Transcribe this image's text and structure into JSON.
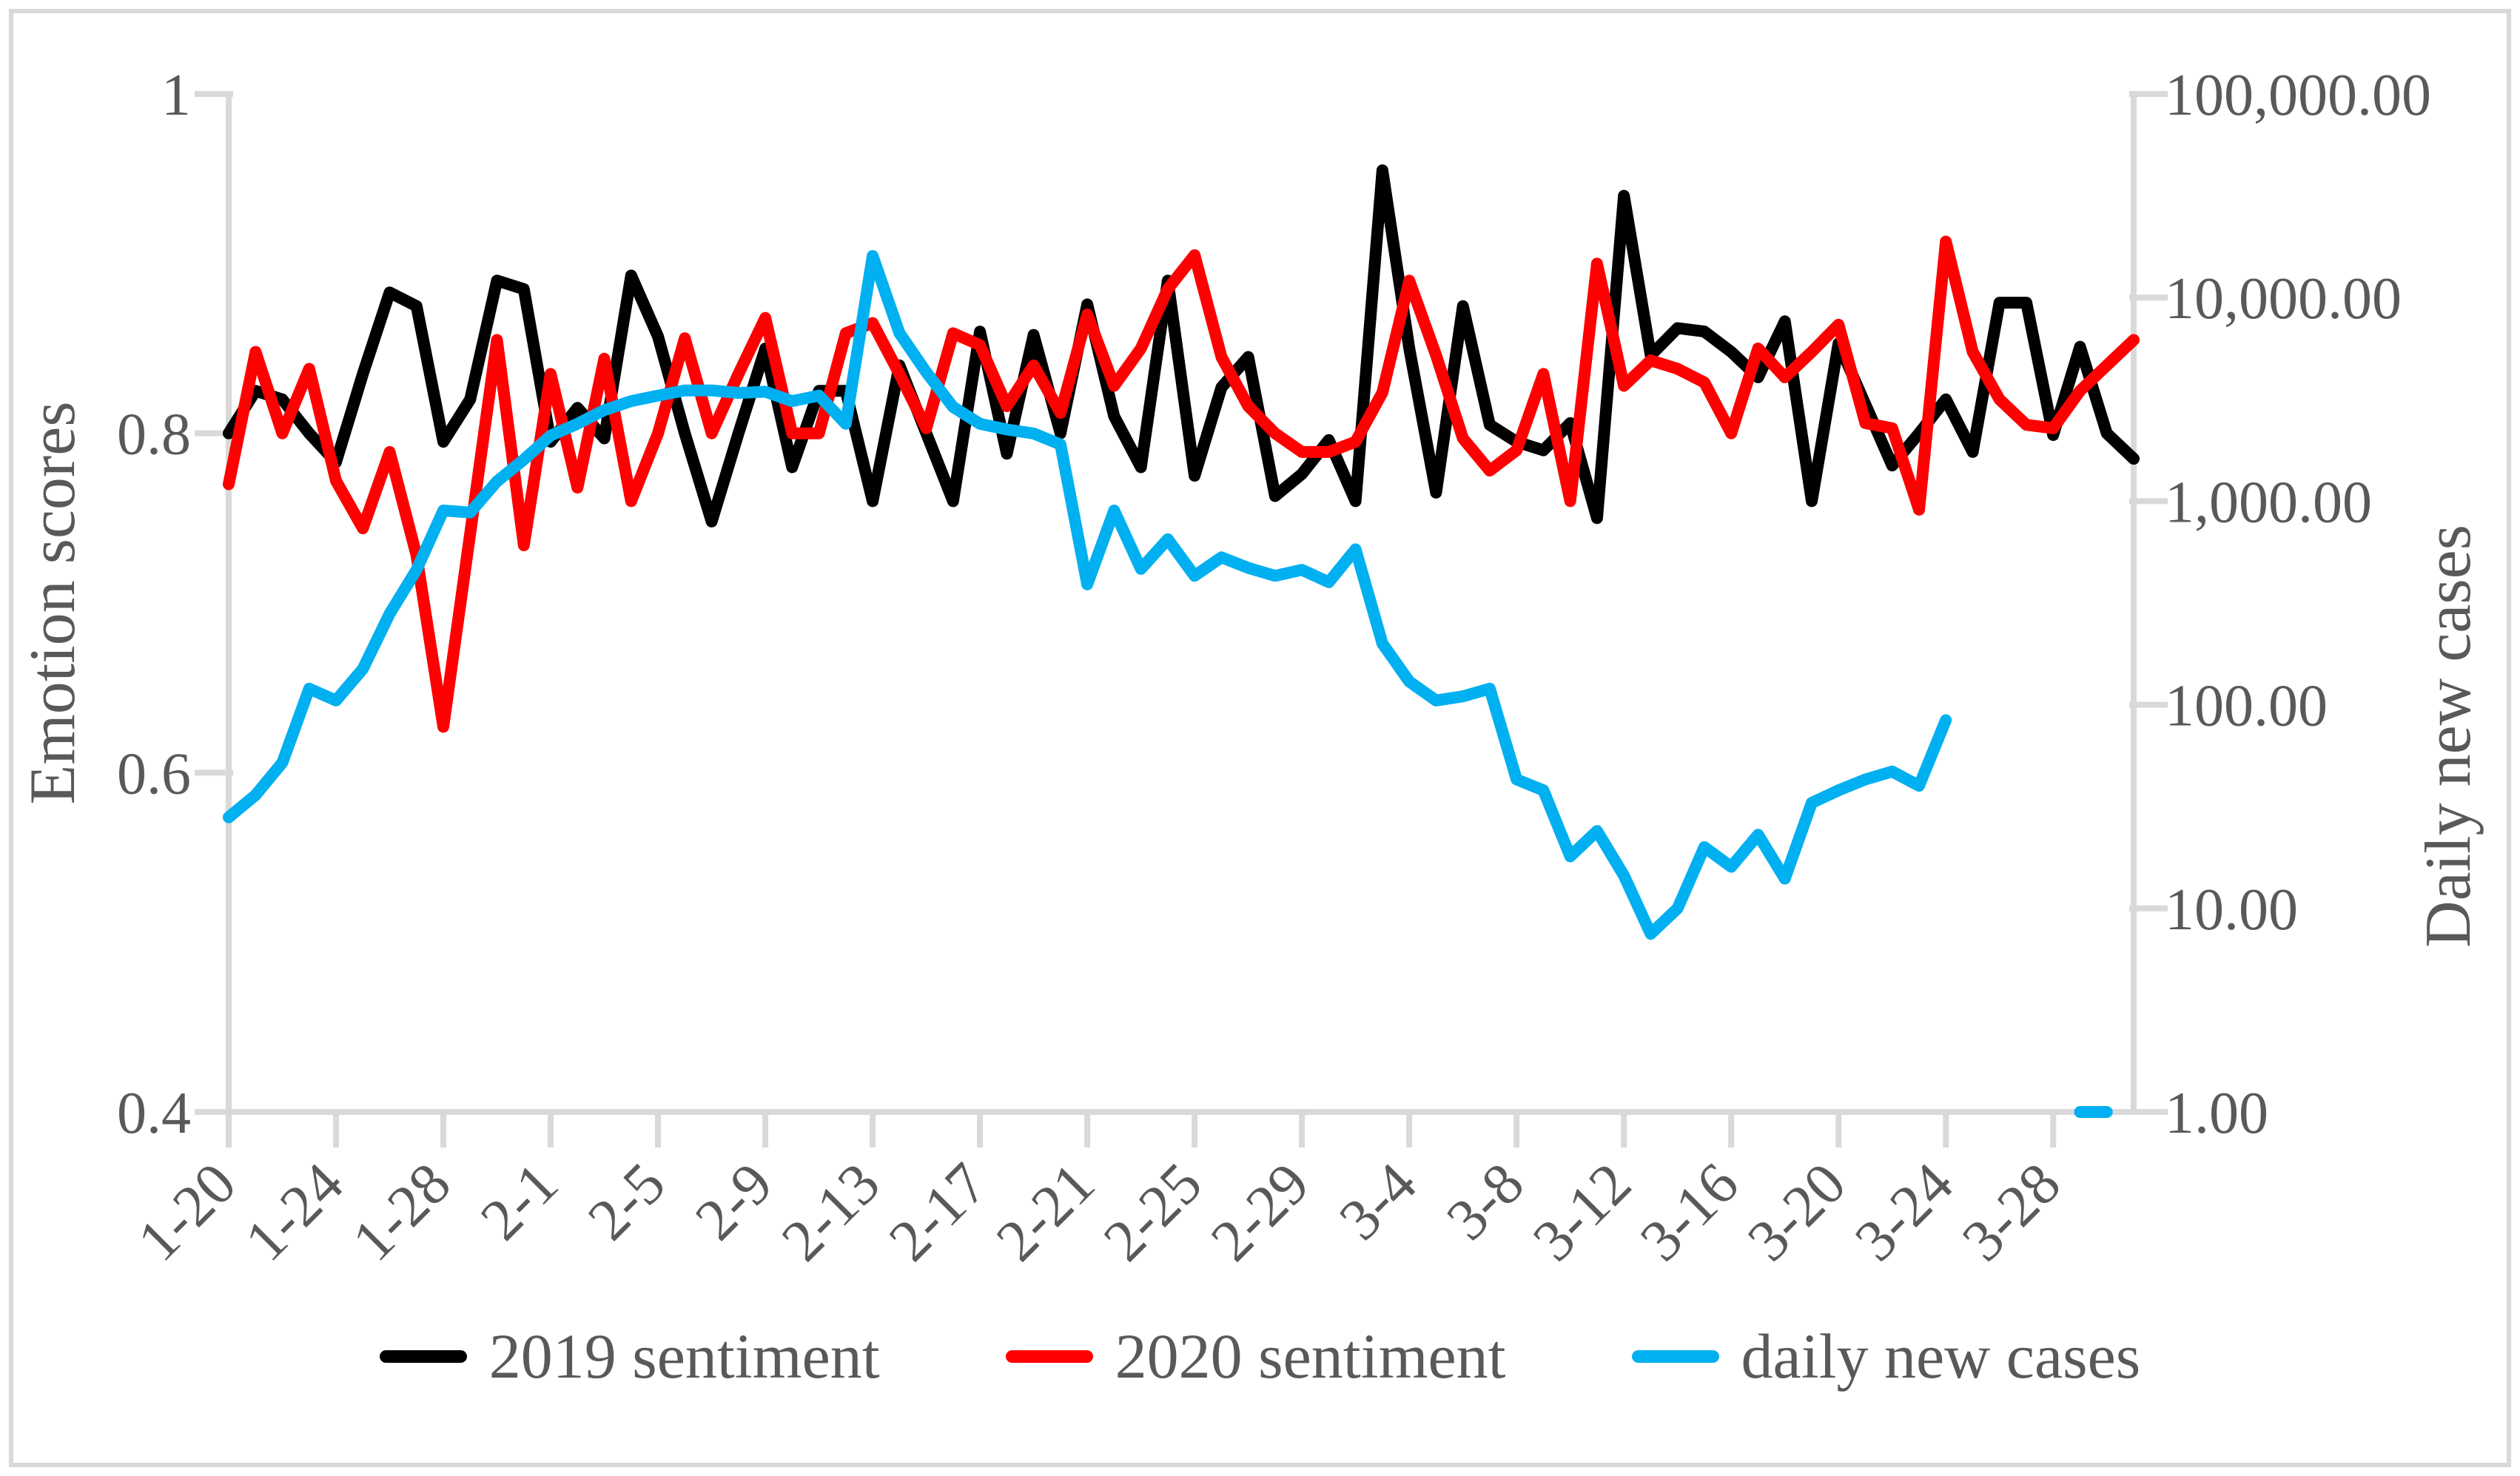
{
  "chart_data": {
    "type": "line",
    "title": "",
    "x": [
      "1-20",
      "1-21",
      "1-22",
      "1-23",
      "1-24",
      "1-25",
      "1-26",
      "1-27",
      "1-28",
      "1-29",
      "1-30",
      "1-31",
      "2-1",
      "2-2",
      "2-3",
      "2-4",
      "2-5",
      "2-6",
      "2-7",
      "2-8",
      "2-9",
      "2-10",
      "2-11",
      "2-12",
      "2-13",
      "2-14",
      "2-15",
      "2-16",
      "2-17",
      "2-18",
      "2-19",
      "2-20",
      "2-21",
      "2-22",
      "2-23",
      "2-24",
      "2-25",
      "2-26",
      "2-27",
      "2-28",
      "2-29",
      "3-1",
      "3-2",
      "3-3",
      "3-4",
      "3-5",
      "3-6",
      "3-7",
      "3-8",
      "3-9",
      "3-10",
      "3-11",
      "3-12",
      "3-13",
      "3-14",
      "3-15",
      "3-16",
      "3-17",
      "3-18",
      "3-19",
      "3-20",
      "3-21",
      "3-22",
      "3-23",
      "3-24",
      "3-25",
      "3-26",
      "3-27",
      "3-28",
      "3-29",
      "3-30",
      "3-31"
    ],
    "x_tick_labels": [
      "1-20",
      "1-24",
      "1-28",
      "2-1",
      "2-5",
      "2-9",
      "2-13",
      "2-17",
      "2-21",
      "2-25",
      "2-29",
      "3-4",
      "3-8",
      "3-12",
      "3-16",
      "3-20",
      "3-24",
      "3-28"
    ],
    "x_tick_step": 4,
    "left_axis": {
      "title": "Emotion scores",
      "scale": "linear",
      "range": [
        0.4,
        1.0
      ],
      "ticks": [
        "1",
        "0.8",
        "0.6",
        "0.4"
      ],
      "tick_values": [
        1.0,
        0.8,
        0.6,
        0.4
      ]
    },
    "right_axis": {
      "title": "Daily new cases",
      "scale": "log",
      "range": [
        1,
        100000
      ],
      "ticks": [
        "100,000.00",
        "10,000.00",
        "1,000.00",
        "100.00",
        "10.00",
        "1.00"
      ],
      "tick_values": [
        100000,
        10000,
        1000,
        100,
        10,
        1
      ]
    },
    "grid": "off",
    "legend_position": "bottom",
    "axis_color": "#d9d9d9",
    "label_color": "#595959",
    "series": [
      {
        "name": "2019 sentiment",
        "color": "#000000",
        "axis": "left",
        "values": [
          0.8,
          0.825,
          0.82,
          0.8,
          0.783,
          0.835,
          0.883,
          0.875,
          0.795,
          0.82,
          0.89,
          0.885,
          0.795,
          0.815,
          0.797,
          0.893,
          0.857,
          0.8,
          0.748,
          0.8,
          0.85,
          0.78,
          0.825,
          0.825,
          0.76,
          0.84,
          0.8,
          0.76,
          0.86,
          0.788,
          0.858,
          0.8,
          0.876,
          0.81,
          0.78,
          0.89,
          0.775,
          0.827,
          0.845,
          0.763,
          0.776,
          0.796,
          0.76,
          0.955,
          0.85,
          0.765,
          0.875,
          0.805,
          0.795,
          0.79,
          0.806,
          0.75,
          0.94,
          0.846,
          0.862,
          0.86,
          0.848,
          0.833,
          0.866,
          0.76,
          0.853,
          0.817,
          0.781,
          0.8,
          0.82,
          0.789,
          0.877,
          0.877,
          0.799,
          0.851,
          0.8,
          0.785
        ]
      },
      {
        "name": "2020 sentiment",
        "color": "#FF0000",
        "axis": "left",
        "values": [
          0.77,
          0.848,
          0.8,
          0.838,
          0.772,
          0.744,
          0.789,
          0.728,
          0.627,
          0.741,
          0.855,
          0.734,
          0.835,
          0.768,
          0.844,
          0.76,
          0.8,
          0.856,
          0.8,
          0.835,
          0.868,
          0.8,
          0.8,
          0.859,
          0.865,
          0.835,
          0.803,
          0.859,
          0.852,
          0.816,
          0.84,
          0.812,
          0.87,
          0.828,
          0.85,
          0.885,
          0.905,
          0.845,
          0.816,
          0.8,
          0.789,
          0.789,
          0.795,
          0.824,
          0.89,
          0.846,
          0.797,
          0.778,
          0.79,
          0.835,
          0.76,
          0.9,
          0.828,
          0.843,
          0.838,
          0.83,
          0.8,
          0.85,
          0.833,
          0.848,
          0.864,
          0.806,
          0.803,
          0.755,
          0.913,
          0.848,
          0.82,
          0.805,
          0.803,
          0.825,
          0.84,
          0.855
        ]
      },
      {
        "name": "daily new cases",
        "color": "#00B0F0",
        "axis": "right",
        "values": [
          28,
          36,
          52,
          120,
          105,
          150,
          280,
          460,
          900,
          880,
          1250,
          1600,
          2100,
          2400,
          2800,
          3100,
          3300,
          3500,
          3500,
          3400,
          3450,
          3100,
          3300,
          2400,
          16000,
          6700,
          4300,
          2900,
          2400,
          2250,
          2150,
          1900,
          390,
          900,
          465,
          650,
          430,
          530,
          470,
          430,
          460,
          400,
          580,
          200,
          130,
          105,
          110,
          120,
          43,
          38,
          18,
          24,
          14.5,
          7.5,
          10,
          20,
          16,
          23,
          14,
          33,
          38,
          43,
          47,
          40,
          84,
          null,
          null,
          null,
          null,
          1,
          1,
          null
        ]
      }
    ]
  }
}
